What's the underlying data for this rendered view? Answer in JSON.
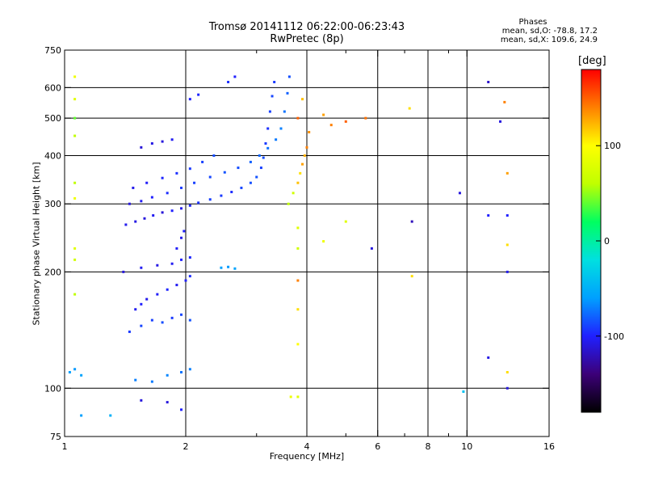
{
  "header": {
    "title_line1": "Tromsø 20141112 06:22:00-06:23:43",
    "title_line2": "RwPretec (8p)"
  },
  "phase_info": {
    "title": "Phases",
    "o_line": "mean, sd,O: -78.8, 17.2",
    "x_line": "mean, sd,X: 109.6, 24.9"
  },
  "colorbar": {
    "unit": "[deg]",
    "ticks": [
      {
        "value": 100,
        "label": "100"
      },
      {
        "value": 0,
        "label": "0"
      },
      {
        "value": -100,
        "label": "-100"
      }
    ],
    "range": [
      -180,
      180
    ],
    "colors": [
      "#000000",
      "#3c0078",
      "#2020ff",
      "#00a0ff",
      "#00e0e0",
      "#00ff60",
      "#c0ff00",
      "#ffff00",
      "#ff8000",
      "#ff0000"
    ]
  },
  "chart_data": {
    "type": "scatter",
    "title": "Tromsø 20141112 06:22:00-06:23:43",
    "subtitle": "RwPretec (8p)",
    "xlabel": "Frequency [MHz]",
    "ylabel": "Stationary phase Virtual Height [km]",
    "x_scale": "log",
    "y_scale": "log",
    "xlim": [
      1,
      16
    ],
    "ylim": [
      75,
      750
    ],
    "x_ticks": [
      {
        "value": 1,
        "label": "1"
      },
      {
        "value": 2,
        "label": "2"
      },
      {
        "value": 4,
        "label": "4"
      },
      {
        "value": 6,
        "label": "6"
      },
      {
        "value": 8,
        "label": "8"
      },
      {
        "value": 10,
        "label": "10"
      },
      {
        "value": 16,
        "label": "16"
      }
    ],
    "x_minor": [
      3,
      5,
      7,
      9
    ],
    "x_gridlines": [
      2,
      4,
      6,
      8,
      10
    ],
    "y_ticks": [
      {
        "value": 75,
        "label": "75"
      },
      {
        "value": 100,
        "label": "100"
      },
      {
        "value": 200,
        "label": "200"
      },
      {
        "value": 300,
        "label": "300"
      },
      {
        "value": 400,
        "label": "400"
      },
      {
        "value": 500,
        "label": "500"
      },
      {
        "value": 600,
        "label": "600"
      },
      {
        "value": 750,
        "label": "750"
      }
    ],
    "y_gridlines": [
      100,
      200,
      300,
      400,
      500,
      600
    ],
    "color_encodes": "phase [deg]",
    "series": [
      {
        "points": [
          [
            1.42,
            265,
            -105
          ],
          [
            1.5,
            270,
            -108
          ],
          [
            1.58,
            275,
            -110
          ],
          [
            1.66,
            280,
            -104
          ],
          [
            1.75,
            285,
            -112
          ],
          [
            1.85,
            288,
            -100
          ],
          [
            1.95,
            292,
            -106
          ],
          [
            2.05,
            297,
            -98
          ],
          [
            2.15,
            302,
            -94
          ],
          [
            2.3,
            308,
            -90
          ],
          [
            2.45,
            315,
            -92
          ],
          [
            2.6,
            322,
            -96
          ],
          [
            2.75,
            330,
            -88
          ],
          [
            2.9,
            340,
            -85
          ],
          [
            3.0,
            352,
            -84
          ],
          [
            3.08,
            372,
            -90
          ],
          [
            3.12,
            395,
            -86
          ],
          [
            3.16,
            430,
            -92
          ],
          [
            3.2,
            470,
            -95
          ],
          [
            3.24,
            520,
            -90
          ],
          [
            3.28,
            570,
            -88
          ],
          [
            3.32,
            620,
            -92
          ],
          [
            1.45,
            300,
            -110
          ],
          [
            1.55,
            305,
            -104
          ],
          [
            1.65,
            312,
            -100
          ],
          [
            1.8,
            320,
            -96
          ],
          [
            1.95,
            330,
            -92
          ],
          [
            2.1,
            340,
            -90
          ],
          [
            2.3,
            352,
            -88
          ],
          [
            2.5,
            362,
            -84
          ],
          [
            2.7,
            372,
            -86
          ],
          [
            2.9,
            385,
            -80
          ],
          [
            3.05,
            400,
            -78
          ],
          [
            3.2,
            418,
            -75
          ],
          [
            3.35,
            440,
            -72
          ],
          [
            3.45,
            470,
            -70
          ],
          [
            3.52,
            520,
            -74
          ],
          [
            3.58,
            580,
            -80
          ],
          [
            3.62,
            640,
            -85
          ],
          [
            1.48,
            330,
            -106
          ],
          [
            1.6,
            340,
            -102
          ],
          [
            1.75,
            350,
            -98
          ],
          [
            1.9,
            360,
            -95
          ],
          [
            2.05,
            370,
            -92
          ],
          [
            2.2,
            385,
            -90
          ],
          [
            2.35,
            400,
            -86
          ],
          [
            1.55,
            420,
            -112
          ],
          [
            1.65,
            430,
            -108
          ],
          [
            1.75,
            435,
            -110
          ],
          [
            1.85,
            440,
            -104
          ],
          [
            2.05,
            560,
            -100
          ],
          [
            2.15,
            575,
            -98
          ],
          [
            2.55,
            620,
            -95
          ],
          [
            2.65,
            640,
            -100
          ],
          [
            1.5,
            160,
            -104
          ],
          [
            1.55,
            165,
            -100
          ],
          [
            1.6,
            170,
            -106
          ],
          [
            1.7,
            175,
            -102
          ],
          [
            1.8,
            180,
            -98
          ],
          [
            1.9,
            185,
            -104
          ],
          [
            2.0,
            190,
            -100
          ],
          [
            2.05,
            195,
            -96
          ],
          [
            1.45,
            140,
            -92
          ],
          [
            1.55,
            145,
            -88
          ],
          [
            1.65,
            150,
            -90
          ],
          [
            1.75,
            148,
            -86
          ],
          [
            1.85,
            152,
            -92
          ],
          [
            1.95,
            155,
            -88
          ],
          [
            2.05,
            150,
            -84
          ],
          [
            1.4,
            200,
            -110
          ],
          [
            1.55,
            205,
            -104
          ],
          [
            1.7,
            208,
            -108
          ],
          [
            1.85,
            210,
            -104
          ],
          [
            1.95,
            215,
            -100
          ],
          [
            2.05,
            218,
            -98
          ],
          [
            1.9,
            230,
            -102
          ],
          [
            1.95,
            245,
            -106
          ],
          [
            1.98,
            255,
            -100
          ],
          [
            2.45,
            205,
            -60
          ],
          [
            2.55,
            206,
            -62
          ],
          [
            2.65,
            204,
            -58
          ],
          [
            1.5,
            105,
            -70
          ],
          [
            1.65,
            104,
            -72
          ],
          [
            1.8,
            108,
            -68
          ],
          [
            1.95,
            110,
            -74
          ],
          [
            2.05,
            112,
            -70
          ],
          [
            1.03,
            110,
            -60
          ],
          [
            1.06,
            112,
            -62
          ],
          [
            1.1,
            108,
            -58
          ],
          [
            3.6,
            300,
            60
          ],
          [
            3.7,
            320,
            70
          ],
          [
            3.8,
            340,
            120
          ],
          [
            3.85,
            360,
            110
          ],
          [
            3.9,
            380,
            130
          ],
          [
            3.95,
            400,
            125
          ],
          [
            4.0,
            420,
            140
          ],
          [
            4.05,
            460,
            135
          ],
          [
            3.8,
            500,
            150
          ],
          [
            3.9,
            560,
            120
          ],
          [
            4.4,
            510,
            130
          ],
          [
            4.6,
            480,
            140
          ],
          [
            5.0,
            490,
            150
          ],
          [
            5.6,
            500,
            145
          ],
          [
            7.2,
            530,
            110
          ],
          [
            1.06,
            640,
            90
          ],
          [
            1.06,
            560,
            80
          ],
          [
            1.06,
            500,
            40
          ],
          [
            1.06,
            450,
            60
          ],
          [
            1.06,
            340,
            60
          ],
          [
            1.06,
            310,
            90
          ],
          [
            1.06,
            230,
            80
          ],
          [
            1.06,
            215,
            70
          ],
          [
            1.06,
            175,
            60
          ],
          [
            3.8,
            260,
            80
          ],
          [
            3.8,
            230,
            70
          ],
          [
            3.8,
            190,
            140
          ],
          [
            3.8,
            160,
            110
          ],
          [
            3.8,
            130,
            100
          ],
          [
            3.8,
            95,
            80
          ],
          [
            4.4,
            240,
            90
          ],
          [
            5.0,
            270,
            80
          ],
          [
            5.8,
            230,
            -110
          ],
          [
            7.3,
            270,
            -120
          ],
          [
            7.3,
            195,
            110
          ],
          [
            9.6,
            320,
            -110
          ],
          [
            9.8,
            98,
            -40
          ],
          [
            11.3,
            620,
            -115
          ],
          [
            11.3,
            280,
            -100
          ],
          [
            11.3,
            120,
            -108
          ],
          [
            12.4,
            550,
            140
          ],
          [
            12.1,
            490,
            -110
          ],
          [
            12.6,
            360,
            130
          ],
          [
            12.6,
            280,
            -100
          ],
          [
            12.6,
            235,
            110
          ],
          [
            12.6,
            200,
            -105
          ],
          [
            12.6,
            110,
            110
          ],
          [
            12.6,
            100,
            -110
          ],
          [
            1.1,
            85,
            -60
          ],
          [
            1.3,
            85,
            -50
          ],
          [
            1.55,
            93,
            -110
          ],
          [
            1.8,
            92,
            -110
          ],
          [
            1.95,
            88,
            -100
          ],
          [
            3.65,
            95,
            90
          ]
        ]
      }
    ]
  }
}
